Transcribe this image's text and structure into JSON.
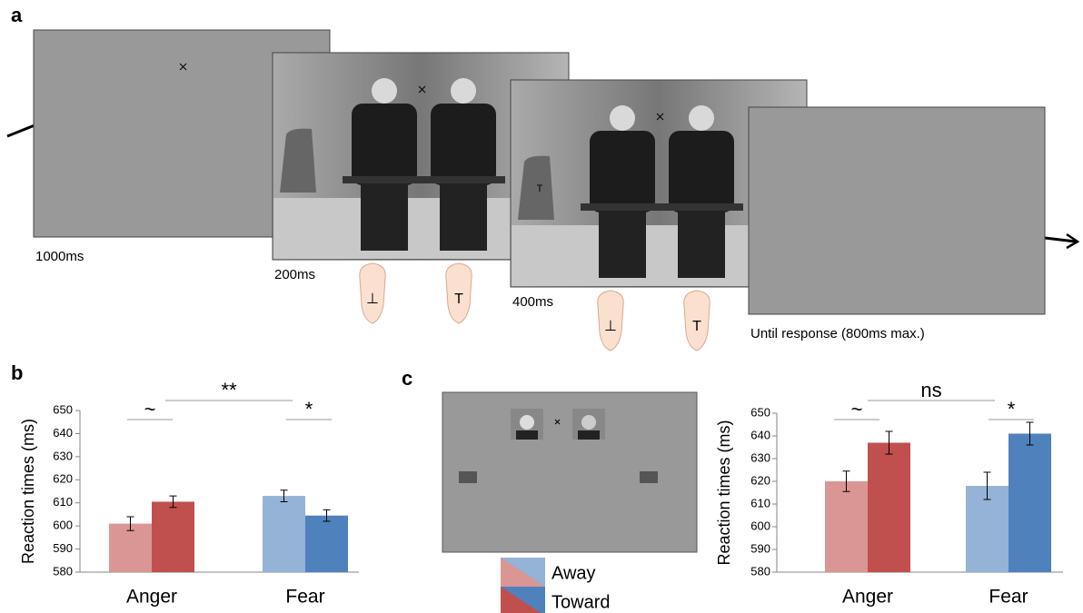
{
  "panel_labels": [
    "a",
    "b",
    "c"
  ],
  "trial_panels": [
    {
      "duration": "1000ms"
    },
    {
      "duration": "200ms",
      "hands": [
        "⊥",
        "T"
      ]
    },
    {
      "duration": "400ms",
      "hands": [
        "⊥",
        "T"
      ],
      "target": "T"
    },
    {
      "duration": "Until response (800ms max.)"
    }
  ],
  "legend": [
    {
      "name": "Away",
      "colors": [
        "#da9694",
        "#95b3d7"
      ]
    },
    {
      "name": "Toward",
      "colors": [
        "#c0504d",
        "#4f81bd"
      ]
    }
  ],
  "chart_data": [
    {
      "type": "bar",
      "y_label": "Reaction times (ms)",
      "categories": [
        "Anger",
        "Fear"
      ],
      "series": [
        {
          "colors": [
            "#da9694",
            "#95b3d7"
          ],
          "values": [
            601,
            613
          ],
          "errors": [
            3,
            2.5
          ]
        },
        {
          "colors": [
            "#c0504d",
            "#4f81bd"
          ],
          "values": [
            610.5,
            604.5
          ],
          "errors": [
            2.5,
            2.5
          ]
        }
      ],
      "ylim": [
        580,
        650
      ],
      "yticks": [
        580,
        590,
        600,
        610,
        620,
        630,
        640,
        650
      ],
      "annotations": [
        {
          "text": "~"
        },
        {
          "text": "*"
        },
        {
          "text": "**"
        }
      ]
    },
    {
      "type": "bar",
      "y_label": "Reaction times (ms)",
      "categories": [
        "Anger",
        "Fear"
      ],
      "series": [
        {
          "colors": [
            "#da9694",
            "#95b3d7"
          ],
          "values": [
            620,
            618
          ],
          "errors": [
            4.5,
            6
          ]
        },
        {
          "colors": [
            "#c0504d",
            "#4f81bd"
          ],
          "values": [
            637,
            641
          ],
          "errors": [
            5,
            5
          ]
        }
      ],
      "ylim": [
        580,
        650
      ],
      "yticks": [
        580,
        590,
        600,
        610,
        620,
        630,
        640,
        650
      ],
      "annotations": [
        {
          "text": "~"
        },
        {
          "text": "*"
        },
        {
          "text": "ns"
        }
      ]
    }
  ]
}
